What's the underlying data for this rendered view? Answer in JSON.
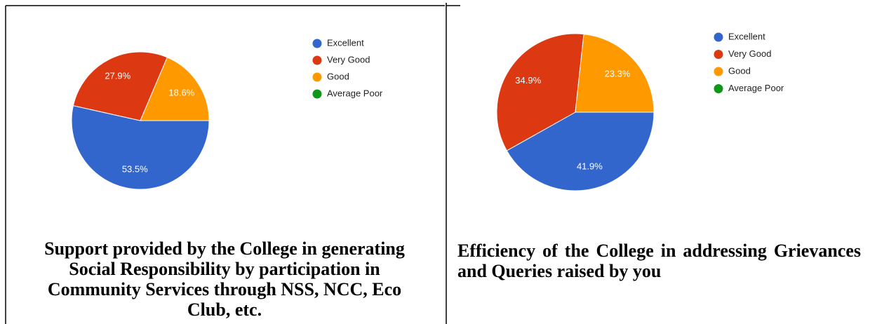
{
  "chart_data": [
    {
      "type": "pie",
      "title": "Support provided by the College in generating Social Responsibility by participation in Community Services through NSS, NCC, Eco Club, etc.",
      "categories": [
        "Excellent",
        "Very Good",
        "Good",
        "Average Poor"
      ],
      "values": [
        53.5,
        27.9,
        18.6,
        0
      ],
      "value_labels": [
        "53.5%",
        "27.9%",
        "18.6%",
        null
      ],
      "colors": [
        "#3366cc",
        "#dc3912",
        "#ff9900",
        "#109618"
      ]
    },
    {
      "type": "pie",
      "title": "Efficiency of the College in addressing Grievances and Queries raised by you",
      "categories": [
        "Excellent",
        "Very Good",
        "Good",
        "Average Poor"
      ],
      "values": [
        41.9,
        34.9,
        23.3,
        0
      ],
      "value_labels": [
        "41.9%",
        "34.9%",
        "23.3%",
        null
      ],
      "colors": [
        "#3366cc",
        "#dc3912",
        "#ff9900",
        "#109618"
      ]
    }
  ]
}
